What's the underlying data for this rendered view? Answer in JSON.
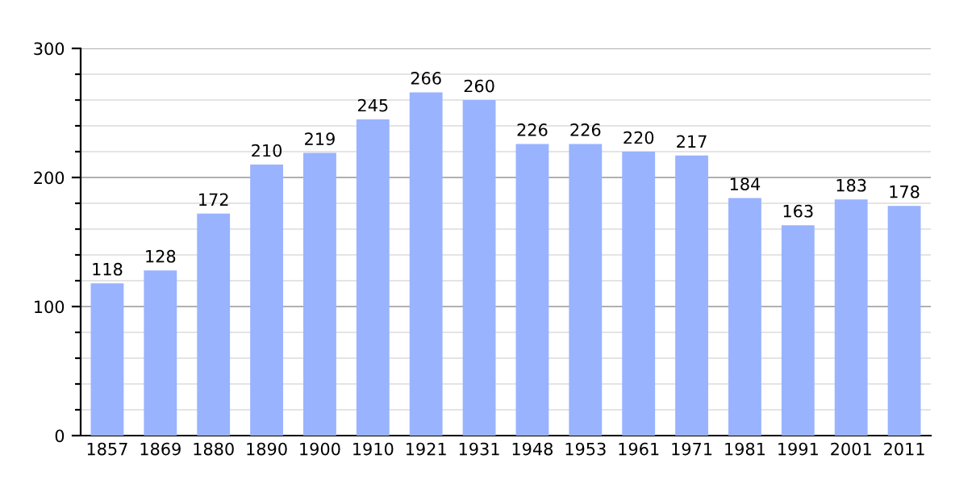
{
  "chart_data": {
    "type": "bar",
    "categories": [
      "1857",
      "1869",
      "1880",
      "1890",
      "1900",
      "1910",
      "1921",
      "1931",
      "1948",
      "1953",
      "1961",
      "1971",
      "1981",
      "1991",
      "2001",
      "2011"
    ],
    "values": [
      118,
      128,
      172,
      210,
      219,
      245,
      266,
      260,
      226,
      226,
      220,
      217,
      184,
      163,
      183,
      178
    ],
    "color": "#99b3ff",
    "ylim": [
      0,
      300
    ],
    "yticks": [
      0,
      {
        "value": 20,
        "label": null
      },
      {
        "value": 40,
        "label": null
      },
      {
        "value": 60,
        "label": null
      },
      {
        "value": 80,
        "label": null
      },
      100,
      {
        "value": 120,
        "label": null
      },
      {
        "value": 140,
        "label": null
      },
      {
        "value": 160,
        "label": null
      },
      {
        "value": 180,
        "label": null
      },
      200,
      {
        "value": 220,
        "label": null
      },
      {
        "value": 240,
        "label": null
      },
      {
        "value": 260,
        "label": null
      },
      {
        "value": 280,
        "label": null
      },
      300
    ],
    "grid": "y",
    "data_labels": true
  }
}
